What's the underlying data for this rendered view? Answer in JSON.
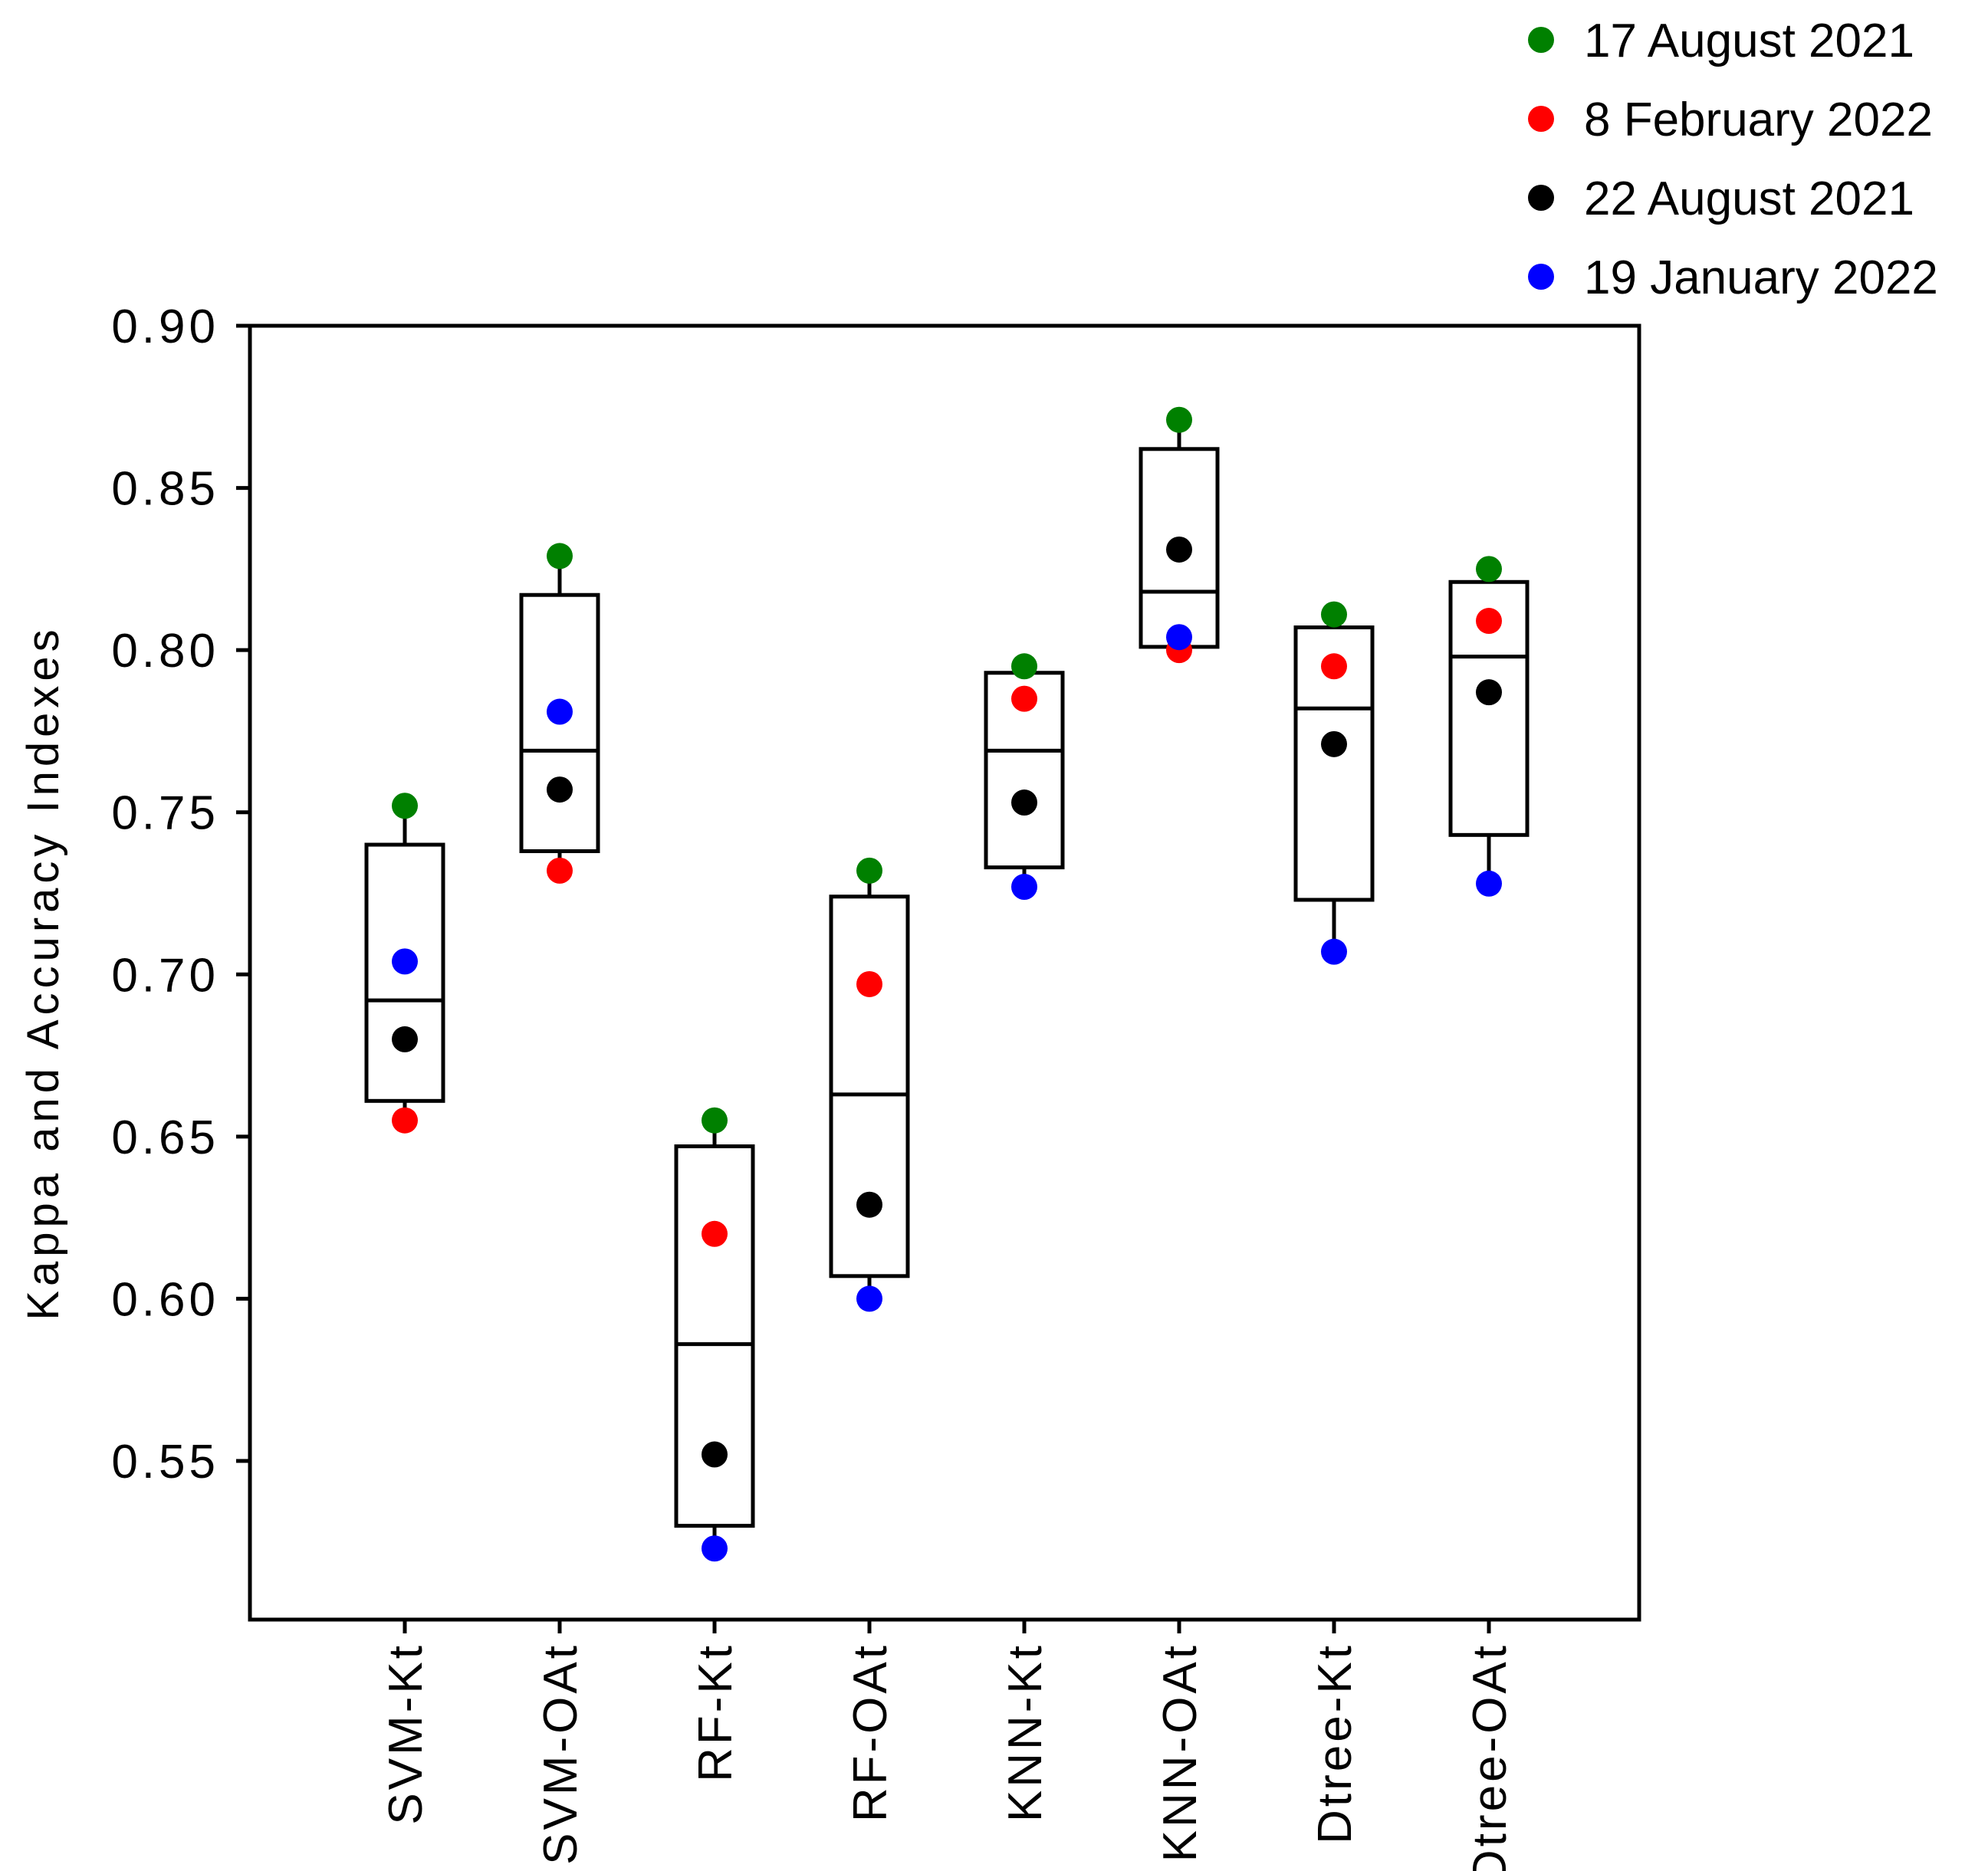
{
  "chart_data": {
    "type": "box",
    "title": "",
    "xlabel": "",
    "ylabel": "Kappa and Accuracy Indexes",
    "ylim": [
      0.5,
      0.9
    ],
    "yticks": [
      "0.90",
      "0.85",
      "0.80",
      "0.75",
      "0.70",
      "0.65",
      "0.60",
      "0.55"
    ],
    "ytick_values": [
      0.9,
      0.85,
      0.8,
      0.75,
      0.7,
      0.65,
      0.6,
      0.55
    ],
    "categories": [
      "SVM-Kt",
      "SVM-OAt",
      "RF-Kt",
      "RF-OAt",
      "KNN-Kt",
      "KNN-OAt",
      "Dtree-Kt",
      "Dtree-OAt"
    ],
    "boxes": [
      {
        "q1": 0.661,
        "median": 0.692,
        "q3": 0.74,
        "whisker_low": 0.655,
        "whisker_high": 0.752
      },
      {
        "q1": 0.738,
        "median": 0.769,
        "q3": 0.817,
        "whisker_low": 0.732,
        "whisker_high": 0.829
      },
      {
        "q1": 0.53,
        "median": 0.586,
        "q3": 0.647,
        "whisker_low": 0.523,
        "whisker_high": 0.655
      },
      {
        "q1": 0.607,
        "median": 0.663,
        "q3": 0.724,
        "whisker_low": 0.6,
        "whisker_high": 0.732
      },
      {
        "q1": 0.733,
        "median": 0.769,
        "q3": 0.793,
        "whisker_low": 0.727,
        "whisker_high": 0.795
      },
      {
        "q1": 0.801,
        "median": 0.818,
        "q3": 0.862,
        "whisker_low": 0.8,
        "whisker_high": 0.871
      },
      {
        "q1": 0.723,
        "median": 0.782,
        "q3": 0.807,
        "whisker_low": 0.707,
        "whisker_high": 0.811
      },
      {
        "q1": 0.743,
        "median": 0.798,
        "q3": 0.821,
        "whisker_low": 0.728,
        "whisker_high": 0.825
      }
    ],
    "series": [
      {
        "name": "17 August 2021",
        "color": "#008000",
        "values": [
          0.752,
          0.829,
          0.655,
          0.732,
          0.795,
          0.871,
          0.811,
          0.825
        ]
      },
      {
        "name": "8 February 2022",
        "color": "#ff0000",
        "values": [
          0.655,
          0.732,
          0.62,
          0.697,
          0.785,
          0.8,
          0.795,
          0.809
        ]
      },
      {
        "name": "22 August 2021",
        "color": "#000000",
        "values": [
          0.68,
          0.757,
          0.552,
          0.629,
          0.753,
          0.831,
          0.771,
          0.787
        ]
      },
      {
        "name": "19 January 2022",
        "color": "#0000ff",
        "values": [
          0.704,
          0.781,
          0.523,
          0.6,
          0.727,
          0.804,
          0.707,
          0.728
        ]
      }
    ],
    "legend_position": "top-right",
    "grid": false
  }
}
